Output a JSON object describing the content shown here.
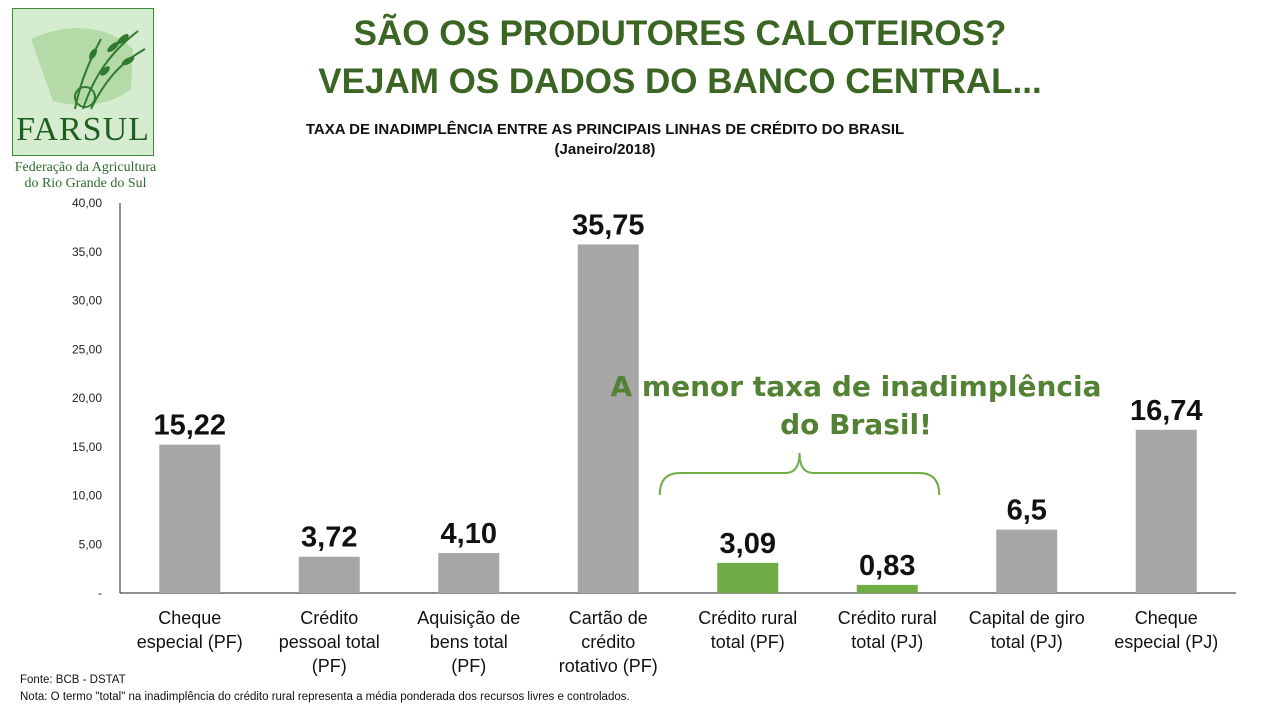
{
  "logo": {
    "name": "FARSUL",
    "caption_line1": "Federação da Agricultura",
    "caption_line2": "do Rio Grande do Sul"
  },
  "headline": {
    "line1": "SÃO OS PRODUTORES CALOTEIROS?",
    "line2": "VEJAM OS DADOS DO BANCO CENTRAL..."
  },
  "footnotes": {
    "source": "Fonte: BCB - DSTAT",
    "note": "Nota: O termo \"total\" na inadimplência do crédito rural representa a média ponderada dos recursos livres e controlados."
  },
  "colors": {
    "bar": "#a6a6a6",
    "highlight": "#70ad47",
    "annotation": "#548235"
  },
  "chart_data": {
    "type": "bar",
    "title": "TAXA DE INADIMPLÊNCIA ENTRE AS PRINCIPAIS LINHAS DE CRÉDITO DO BRASIL",
    "subtitle": "(Janeiro/2018)",
    "categories": [
      [
        "Cheque",
        "especial (PF)"
      ],
      [
        "Crédito",
        "pessoal total",
        "(PF)"
      ],
      [
        "Aquisição de",
        "bens total",
        "(PF)"
      ],
      [
        "Cartão de",
        "crédito",
        "rotativo (PF)"
      ],
      [
        "Crédito rural",
        "total (PF)"
      ],
      [
        "Crédito rural",
        "total (PJ)"
      ],
      [
        "Capital de giro",
        "total (PJ)"
      ],
      [
        "Cheque",
        "especial (PJ)"
      ]
    ],
    "values": [
      15.22,
      3.72,
      4.1,
      35.75,
      3.09,
      0.83,
      6.5,
      16.74
    ],
    "value_labels": [
      "15,22",
      "3,72",
      "4,10",
      "35,75",
      "3,09",
      "0,83",
      "6,5",
      "16,74"
    ],
    "highlighted": [
      4,
      5
    ],
    "ylim": [
      0,
      40
    ],
    "yticks": [
      "-",
      "5,00",
      "10,00",
      "15,00",
      "20,00",
      "25,00",
      "30,00",
      "35,00",
      "40,00"
    ],
    "grid": false,
    "annotation": {
      "line1": "A menor taxa de inadimplência",
      "line2": "do Brasil!",
      "spans": [
        4,
        5
      ]
    }
  }
}
